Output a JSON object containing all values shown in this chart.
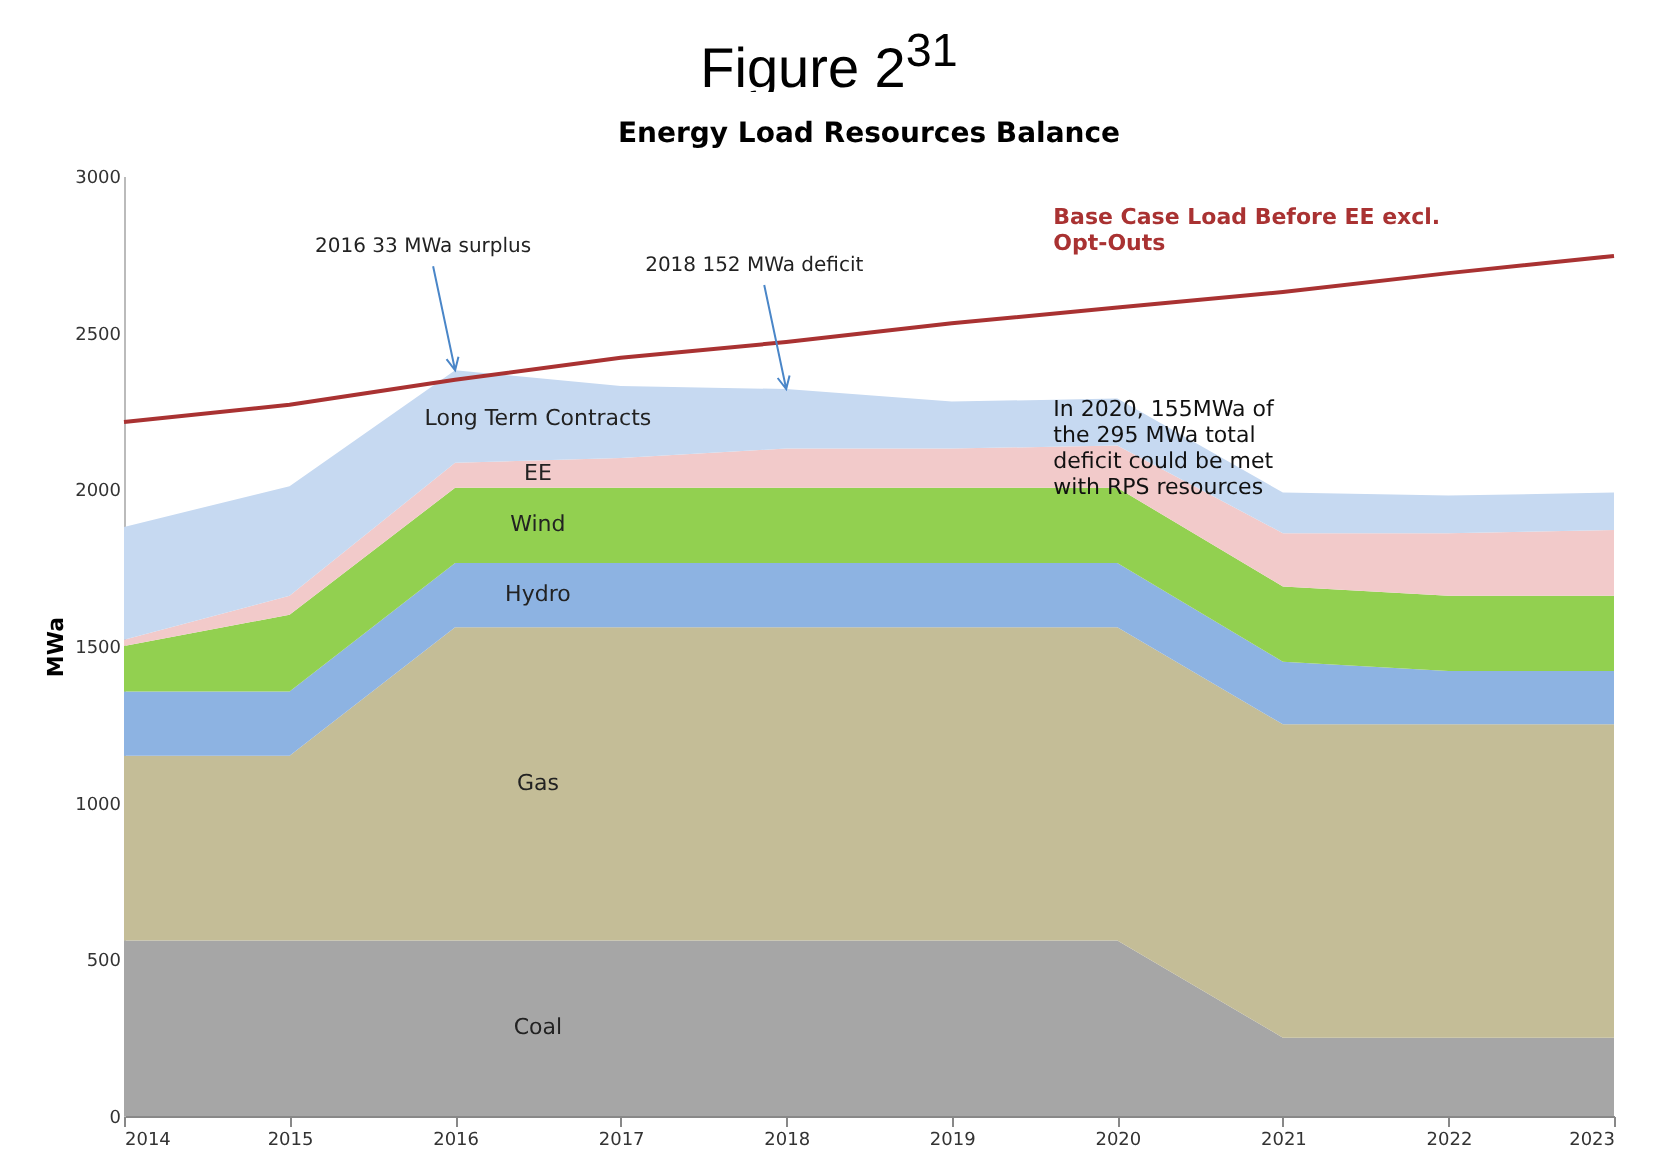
{
  "chart_data": {
    "type": "area",
    "title": "Figure 2$^{31}$",
    "subtitle": "Energy Load Resources Balance",
    "ylabel": "MWa",
    "stacked": true,
    "x": [
      2014,
      2015,
      2016,
      2017,
      2018,
      2019,
      2020,
      2021,
      2022,
      2023
    ],
    "xlim": [
      2014,
      2023
    ],
    "xticks": [
      2014,
      2015,
      2016,
      2017,
      2018,
      2019,
      2020,
      2021,
      2022,
      2023
    ],
    "ylim": [
      0,
      3000
    ],
    "yticks": [
      0,
      500,
      1000,
      1500,
      2000,
      2500,
      3000
    ],
    "grid": false,
    "legend": false,
    "series": [
      {
        "name": "Coal",
        "color": "#a6a6a6",
        "values": [
          560,
          560,
          560,
          560,
          560,
          560,
          560,
          250,
          250,
          250
        ]
      },
      {
        "name": "Gas",
        "color": "#c4bd97",
        "values": [
          590,
          590,
          1000,
          1000,
          1000,
          1000,
          1000,
          1000,
          1000,
          1000
        ]
      },
      {
        "name": "Hydro",
        "color": "#8db3e2",
        "values": [
          205,
          205,
          205,
          205,
          205,
          205,
          205,
          200,
          170,
          170
        ]
      },
      {
        "name": "Wind",
        "color": "#92d050",
        "values": [
          145,
          245,
          240,
          240,
          240,
          240,
          240,
          240,
          240,
          240
        ]
      },
      {
        "name": "EE",
        "color": "#f2caca",
        "values": [
          20,
          60,
          80,
          95,
          125,
          125,
          135,
          170,
          200,
          210
        ]
      },
      {
        "name": "Long Term Contracts",
        "color": "#c6d9f1",
        "values": [
          360,
          350,
          295,
          230,
          190,
          150,
          150,
          130,
          120,
          120
        ]
      },
      {
        "name": "Base Case Load Before EE excl. Opt-Outs",
        "type": "line",
        "color": "#a93232",
        "values": [
          2215,
          2270,
          2350,
          2420,
          2470,
          2530,
          2580,
          2630,
          2690,
          2745
        ]
      }
    ],
    "annotations": [
      {
        "text": "2016 33 MWa surplus",
        "x": 2016,
        "y": 2380
      },
      {
        "text": "2018 152 MWa deficit",
        "x": 2018,
        "y": 2320
      },
      "In 2020, 155MWa of the 295 MWa total deficit could be met with RPS resources"
    ]
  }
}
